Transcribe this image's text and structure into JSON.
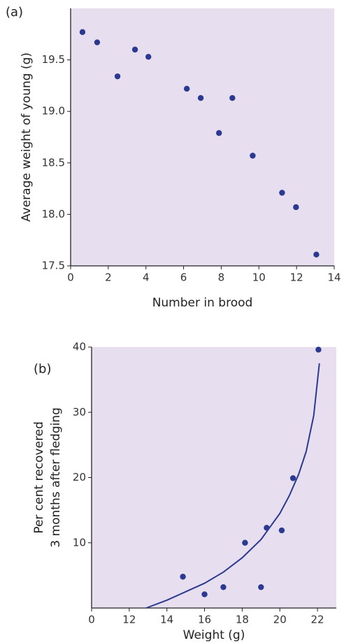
{
  "chart_data": [
    {
      "type": "scatter",
      "panel_label": "(a)",
      "x_label": "Number in brood",
      "y_label": [
        "Average weight of young (g)"
      ],
      "color": "#2b3990",
      "xlim": [
        0,
        14
      ],
      "xticks": [
        0,
        2,
        4,
        6,
        8,
        10,
        12,
        14
      ],
      "ylim": [
        17.5,
        20.0
      ],
      "yticks": [
        17.5,
        {
          "value": 18,
          "label": "18.0"
        },
        18.5,
        {
          "value": 19,
          "label": "19.0"
        },
        19.5
      ],
      "points": {
        "x": [
          0.63,
          1.41,
          2.49,
          3.42,
          4.13,
          6.17,
          6.91,
          7.88,
          8.59,
          9.67,
          11.23,
          11.97,
          13.05
        ],
        "y": [
          19.77,
          19.67,
          19.34,
          19.6,
          19.53,
          19.22,
          19.13,
          18.79,
          19.13,
          18.57,
          18.21,
          18.07,
          17.61
        ]
      }
    },
    {
      "type": "scatter",
      "panel_label": "(b)",
      "x_label": "Weight (g)",
      "y_label": [
        "Per cent recovered",
        "3 months after fledging"
      ],
      "color": "#2b3990",
      "xlim": [
        10,
        23
      ],
      "xticks": [
        {
          "value": 10,
          "label": "0"
        },
        12,
        14,
        16,
        18,
        20,
        22
      ],
      "ylim": [
        0,
        40
      ],
      "yticks": [
        10,
        20,
        30,
        40
      ],
      "points": {
        "x": [
          14.85,
          16.0,
          17.0,
          18.15,
          19.3,
          19.0,
          20.1,
          20.7,
          22.05
        ],
        "y": [
          4.8,
          2.1,
          3.2,
          10.0,
          12.3,
          3.2,
          11.9,
          19.9,
          39.6
        ]
      },
      "curve": {
        "x": [
          12.9,
          14,
          15,
          16,
          17,
          18,
          19,
          20,
          20.5,
          21,
          21.4,
          21.8,
          22.1
        ],
        "y": [
          0,
          1.2,
          2.5,
          3.8,
          5.5,
          7.7,
          10.5,
          14.5,
          17.2,
          20.5,
          24,
          29.5,
          37.5
        ]
      }
    }
  ]
}
